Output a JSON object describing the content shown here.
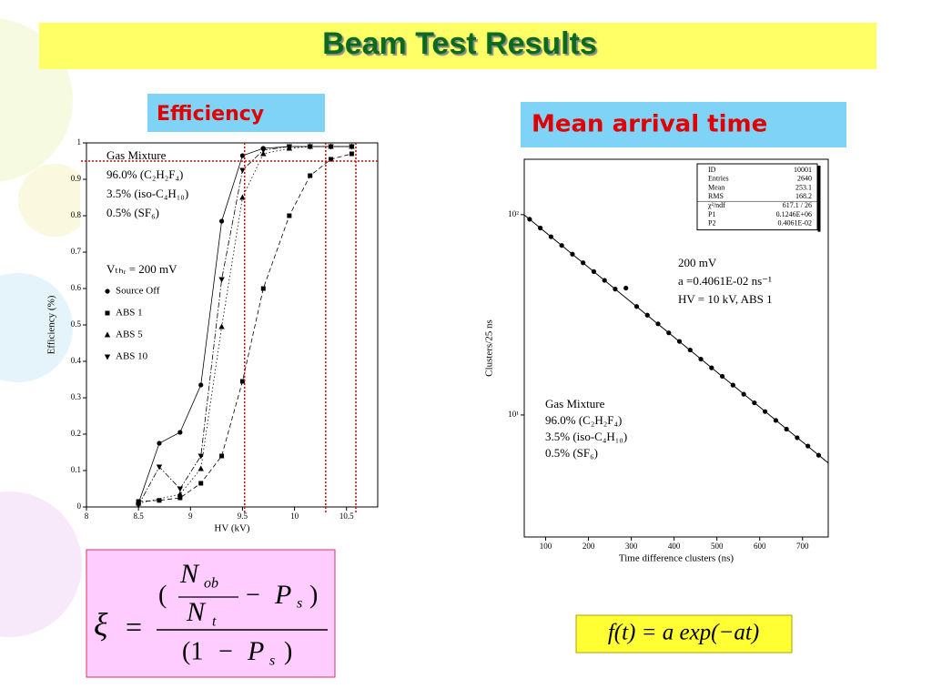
{
  "title": "Beam Test Results",
  "labels": [
    "Efficiency",
    "Mean arrival time"
  ],
  "chart_data": [
    {
      "type": "line",
      "x_label": "HV (kV)",
      "y_label": "Efficiency (%)",
      "xlim": [
        8,
        10.8
      ],
      "ylim": [
        0,
        1
      ],
      "xticks": [
        8,
        8.5,
        9,
        9.5,
        10,
        10.5
      ],
      "yticks": [
        0,
        0.1,
        0.2,
        0.3,
        0.4,
        0.5,
        0.6,
        0.7,
        0.8,
        0.9,
        1
      ],
      "annotations": [
        "Gas Mixture",
        "96.0% (C₂H₂F₄)",
        "3.5% (iso-C₄H₁₀)",
        "0.5% (SF₆)",
        "Vₜₕᵣ =  200 mV"
      ],
      "series": [
        {
          "name": "Source Off",
          "color": "#000000",
          "marker": "circle",
          "dash": "solid",
          "x": [
            8.5,
            8.7,
            8.9,
            9.1,
            9.3,
            9.5,
            9.7,
            9.95,
            10.15,
            10.35,
            10.55
          ],
          "values": [
            0.01,
            0.175,
            0.205,
            0.335,
            0.785,
            0.965,
            0.985,
            0.99,
            0.99,
            0.99,
            0.99
          ]
        },
        {
          "name": "ABS 1",
          "color": "#000000",
          "marker": "square",
          "dash": "dashed",
          "x": [
            8.5,
            8.7,
            8.9,
            9.1,
            9.3,
            9.5,
            9.7,
            9.95,
            10.15,
            10.35,
            10.55
          ],
          "values": [
            0.015,
            0.018,
            0.025,
            0.065,
            0.14,
            0.345,
            0.6,
            0.8,
            0.91,
            0.955,
            0.97
          ]
        },
        {
          "name": "ABS 5",
          "color": "#000000",
          "marker": "triangle",
          "dash": "dotted",
          "x": [
            8.5,
            8.9,
            9.1,
            9.3,
            9.5,
            9.7,
            9.95,
            10.15,
            10.35,
            10.55
          ],
          "values": [
            0.01,
            0.035,
            0.105,
            0.495,
            0.85,
            0.97,
            0.985,
            0.99,
            0.99,
            0.99
          ]
        },
        {
          "name": "ABS 10",
          "color": "#000000",
          "marker": "triangle-down",
          "dash": "dashdot",
          "x": [
            8.5,
            8.7,
            8.9,
            9.1,
            9.3,
            9.5,
            9.7,
            9.95,
            10.15,
            10.35,
            10.55
          ],
          "values": [
            0.005,
            0.11,
            0.05,
            0.14,
            0.625,
            0.925,
            0.98,
            0.99,
            0.99,
            0.99,
            0.99
          ]
        }
      ],
      "reference_lines": {
        "color": "#d00000",
        "x": [
          9.52,
          10.3,
          10.59
        ],
        "y": [
          0.95
        ]
      }
    },
    {
      "type": "scatter",
      "log_y": true,
      "x_label": "Time difference clusters (ns)",
      "y_label": "Clusters/25 ns",
      "xlim": [
        50,
        760
      ],
      "ylim": [
        2.46,
        189
      ],
      "xticks": [
        100,
        200,
        300,
        400,
        500,
        600,
        700
      ],
      "yticks": [
        {
          "value": 10,
          "label": "10¹"
        },
        {
          "value": 100,
          "label": "10²"
        }
      ],
      "series": [
        {
          "color": "#000000",
          "x": [
            62.5,
            87.5,
            112.5,
            137.5,
            162.5,
            187.5,
            212.5,
            237.5,
            262.5,
            287.5,
            312.5,
            337.5,
            362.5,
            387.5,
            412.5,
            437.5,
            462.5,
            487.5,
            512.5,
            537.5,
            562.5,
            587.5,
            612.5,
            637.5,
            662.5,
            687.5,
            712.5,
            737.5
          ],
          "values": [
            94.9,
            85.8,
            77.6,
            70.2,
            63.5,
            57.5,
            52.0,
            47.0,
            42.5,
            43,
            34.8,
            31.5,
            28.5,
            25.7,
            23.3,
            21.1,
            19.0,
            17.2,
            15.6,
            14.1,
            12.7,
            11.5,
            10.4,
            9.4,
            8.5,
            7.7,
            7.0,
            6.3
          ]
        }
      ],
      "fit": {
        "x": [
          50,
          760
        ],
        "values": [
          99.7,
          5.76
        ]
      },
      "stats": [
        [
          "ID",
          "10001"
        ],
        [
          "Entries",
          "2640"
        ],
        [
          "Mean",
          "253.1"
        ],
        [
          "RMS",
          "168.2"
        ],
        [
          "χ²/ndf",
          "617.1   /   26"
        ],
        [
          "P1",
          "0.1246E+06"
        ],
        [
          "P2",
          "0.4061E-02"
        ]
      ],
      "annotations": [
        "200 mV",
        "a =0.4061E-02 ns⁻¹",
        "HV = 10 kV, ABS 1"
      ],
      "gas": [
        "Gas Mixture",
        "96.0% (C₂H₂F₄)",
        "3.5% (iso-C₄H₁₀)",
        "0.5% (SF₆)"
      ]
    }
  ],
  "formulas": {
    "efficiency": {
      "lhs": "ξ",
      "eq": "=",
      "open": "(",
      "n1": "N",
      "n1_sub": "ob",
      "n2": "N",
      "n2_sub": "t",
      "minus": "−",
      "p": "P",
      "p_sub": "s",
      "close": ")",
      "den_open": "(1",
      "den_minus": "−",
      "den_p": "P",
      "den_sub": "s",
      "den_close": ")"
    },
    "arrival": "f(t) = a exp(−at)"
  }
}
